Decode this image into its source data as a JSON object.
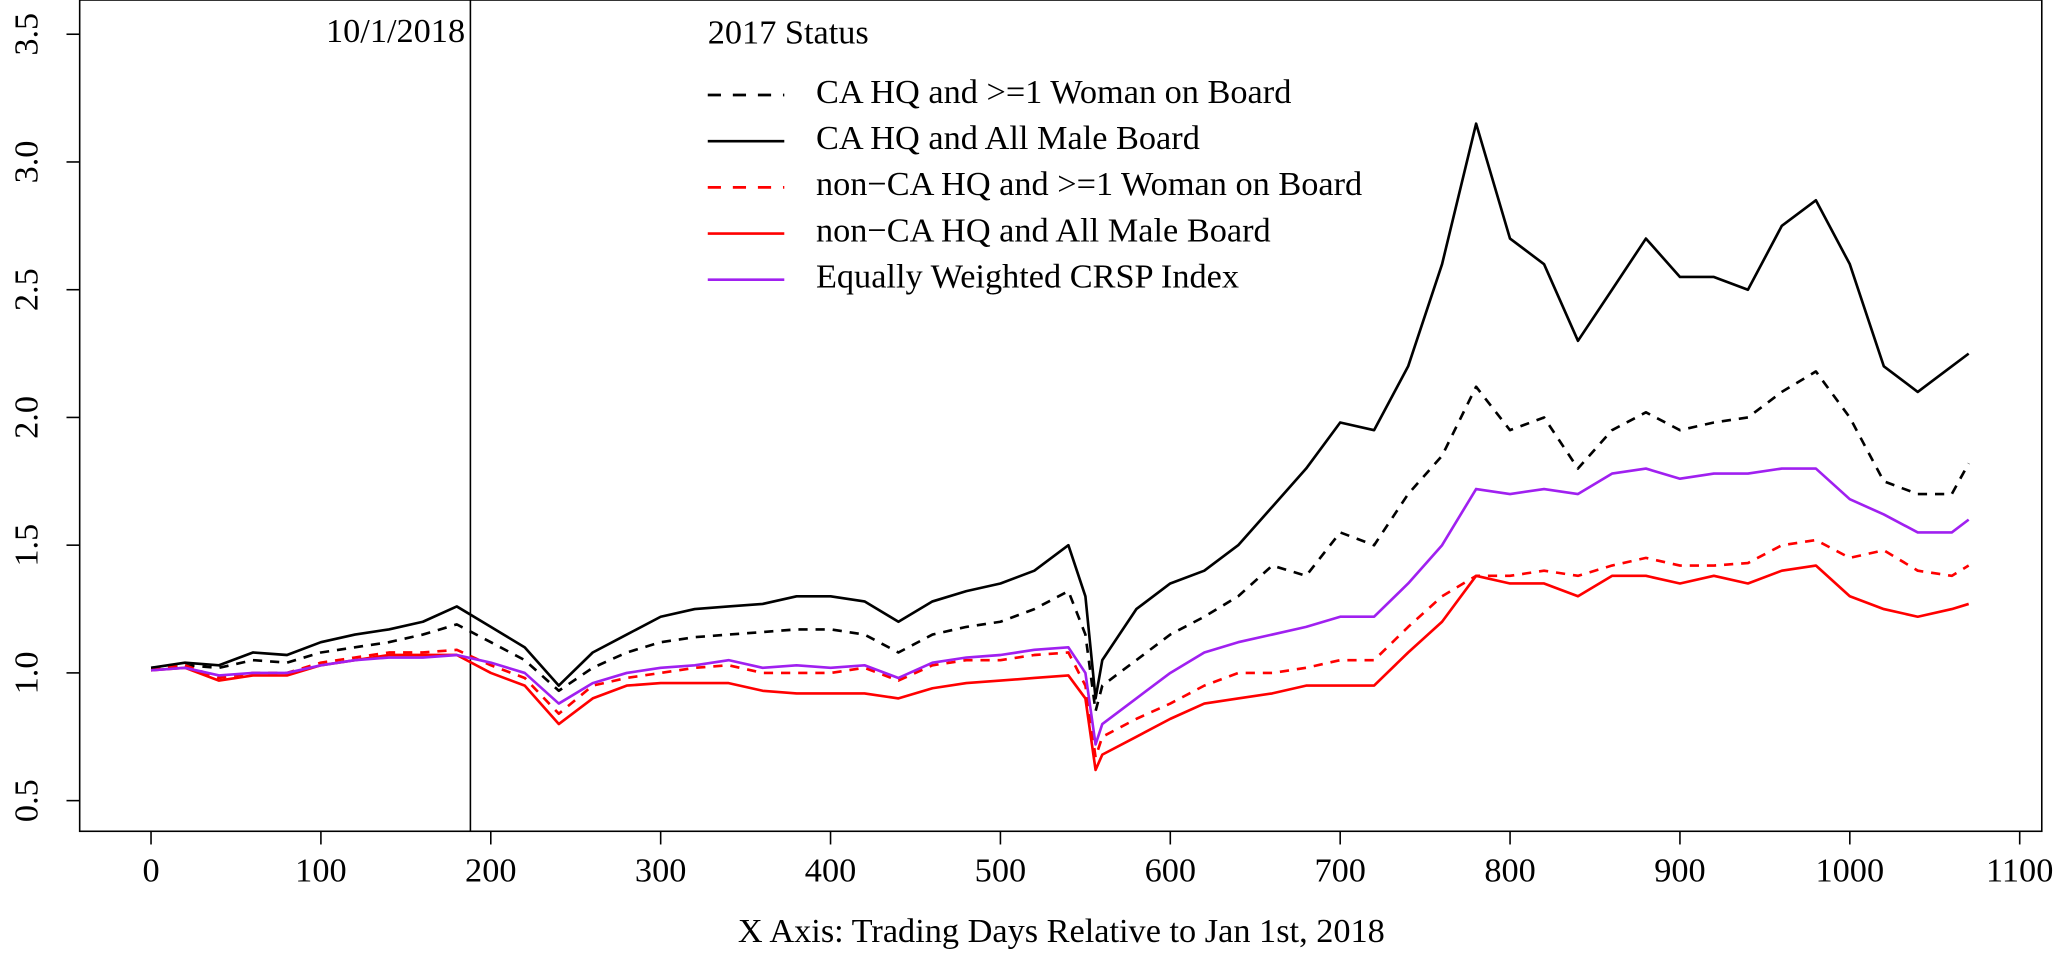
{
  "chart_data": {
    "type": "line",
    "xlabel": "X Axis: Trading Days Relative to Jan 1st, 2018",
    "legend_title": "2017 Status",
    "legend": "top",
    "vline": {
      "x": 188,
      "label": "10/1/2018"
    },
    "xlim": [
      -42,
      1113
    ],
    "ylim": [
      0.38,
      3.634
    ],
    "xticks": [
      0,
      100,
      200,
      300,
      400,
      500,
      600,
      700,
      800,
      900,
      1000,
      1100
    ],
    "yticks": [
      {
        "value": 0.5,
        "label": "0.5"
      },
      {
        "value": 1.0,
        "label": "1.0"
      },
      {
        "value": 1.5,
        "label": "1.5"
      },
      {
        "value": 2.0,
        "label": "2.0"
      },
      {
        "value": 2.5,
        "label": "2.5"
      },
      {
        "value": 3.0,
        "label": "3.0"
      },
      {
        "value": 3.5,
        "label": "3.5"
      }
    ],
    "x": [
      0,
      20,
      40,
      60,
      80,
      100,
      120,
      140,
      160,
      180,
      200,
      220,
      240,
      260,
      280,
      300,
      320,
      340,
      360,
      380,
      400,
      420,
      440,
      460,
      480,
      500,
      520,
      540,
      550,
      556,
      560,
      580,
      600,
      620,
      640,
      660,
      680,
      700,
      720,
      740,
      760,
      780,
      800,
      820,
      840,
      860,
      880,
      900,
      920,
      940,
      960,
      980,
      1000,
      1020,
      1040,
      1060,
      1070
    ],
    "series": [
      {
        "name": "CA HQ and >=1 Woman on Board",
        "color": "#000000",
        "dashed": true,
        "values": [
          1.02,
          1.03,
          1.02,
          1.05,
          1.04,
          1.08,
          1.1,
          1.12,
          1.15,
          1.19,
          1.12,
          1.05,
          0.93,
          1.02,
          1.08,
          1.12,
          1.14,
          1.15,
          1.16,
          1.17,
          1.17,
          1.15,
          1.08,
          1.15,
          1.18,
          1.2,
          1.25,
          1.32,
          1.15,
          0.85,
          0.95,
          1.05,
          1.15,
          1.22,
          1.3,
          1.42,
          1.38,
          1.55,
          1.5,
          1.7,
          1.85,
          2.12,
          1.95,
          2.0,
          1.8,
          1.95,
          2.02,
          1.95,
          1.98,
          2.0,
          2.1,
          2.18,
          2.0,
          1.75,
          1.7,
          1.7,
          1.82
        ]
      },
      {
        "name": "CA HQ and All Male Board",
        "color": "#000000",
        "dashed": false,
        "values": [
          1.02,
          1.04,
          1.03,
          1.08,
          1.07,
          1.12,
          1.15,
          1.17,
          1.2,
          1.26,
          1.18,
          1.1,
          0.95,
          1.08,
          1.15,
          1.22,
          1.25,
          1.26,
          1.27,
          1.3,
          1.3,
          1.28,
          1.2,
          1.28,
          1.32,
          1.35,
          1.4,
          1.5,
          1.3,
          0.9,
          1.05,
          1.25,
          1.35,
          1.4,
          1.5,
          1.65,
          1.8,
          1.98,
          1.95,
          2.2,
          2.6,
          3.15,
          2.7,
          2.6,
          2.3,
          2.5,
          2.7,
          2.55,
          2.55,
          2.5,
          2.75,
          2.85,
          2.6,
          2.2,
          2.1,
          2.2,
          2.25
        ]
      },
      {
        "name": "non−CA HQ and >=1 Woman on Board",
        "color": "#ff0000",
        "dashed": true,
        "values": [
          1.01,
          1.03,
          0.98,
          1.0,
          1.0,
          1.04,
          1.06,
          1.08,
          1.08,
          1.09,
          1.03,
          0.98,
          0.84,
          0.95,
          0.98,
          1.0,
          1.02,
          1.03,
          1.0,
          1.0,
          1.0,
          1.02,
          0.97,
          1.03,
          1.05,
          1.05,
          1.07,
          1.08,
          0.95,
          0.67,
          0.75,
          0.82,
          0.88,
          0.95,
          1.0,
          1.0,
          1.02,
          1.05,
          1.05,
          1.18,
          1.3,
          1.38,
          1.38,
          1.4,
          1.38,
          1.42,
          1.45,
          1.42,
          1.42,
          1.43,
          1.5,
          1.52,
          1.45,
          1.48,
          1.4,
          1.38,
          1.42
        ]
      },
      {
        "name": "non−CA HQ and All Male Board",
        "color": "#ff0000",
        "dashed": false,
        "values": [
          1.01,
          1.02,
          0.97,
          0.99,
          0.99,
          1.03,
          1.05,
          1.07,
          1.07,
          1.07,
          1.0,
          0.95,
          0.8,
          0.9,
          0.95,
          0.96,
          0.96,
          0.96,
          0.93,
          0.92,
          0.92,
          0.92,
          0.9,
          0.94,
          0.96,
          0.97,
          0.98,
          0.99,
          0.9,
          0.62,
          0.68,
          0.75,
          0.82,
          0.88,
          0.9,
          0.92,
          0.95,
          0.95,
          0.95,
          1.08,
          1.2,
          1.38,
          1.35,
          1.35,
          1.3,
          1.38,
          1.38,
          1.35,
          1.38,
          1.35,
          1.4,
          1.42,
          1.3,
          1.25,
          1.22,
          1.25,
          1.27
        ]
      },
      {
        "name": "Equally Weighted CRSP Index",
        "color": "#a020f0",
        "dashed": false,
        "values": [
          1.01,
          1.02,
          0.99,
          1.0,
          1.0,
          1.03,
          1.05,
          1.06,
          1.06,
          1.07,
          1.04,
          1.0,
          0.88,
          0.96,
          1.0,
          1.02,
          1.03,
          1.05,
          1.02,
          1.03,
          1.02,
          1.03,
          0.98,
          1.04,
          1.06,
          1.07,
          1.09,
          1.1,
          1.0,
          0.72,
          0.8,
          0.9,
          1.0,
          1.08,
          1.12,
          1.15,
          1.18,
          1.22,
          1.22,
          1.35,
          1.5,
          1.72,
          1.7,
          1.72,
          1.7,
          1.78,
          1.8,
          1.76,
          1.78,
          1.78,
          1.8,
          1.8,
          1.68,
          1.62,
          1.55,
          1.55,
          1.6
        ]
      }
    ]
  }
}
